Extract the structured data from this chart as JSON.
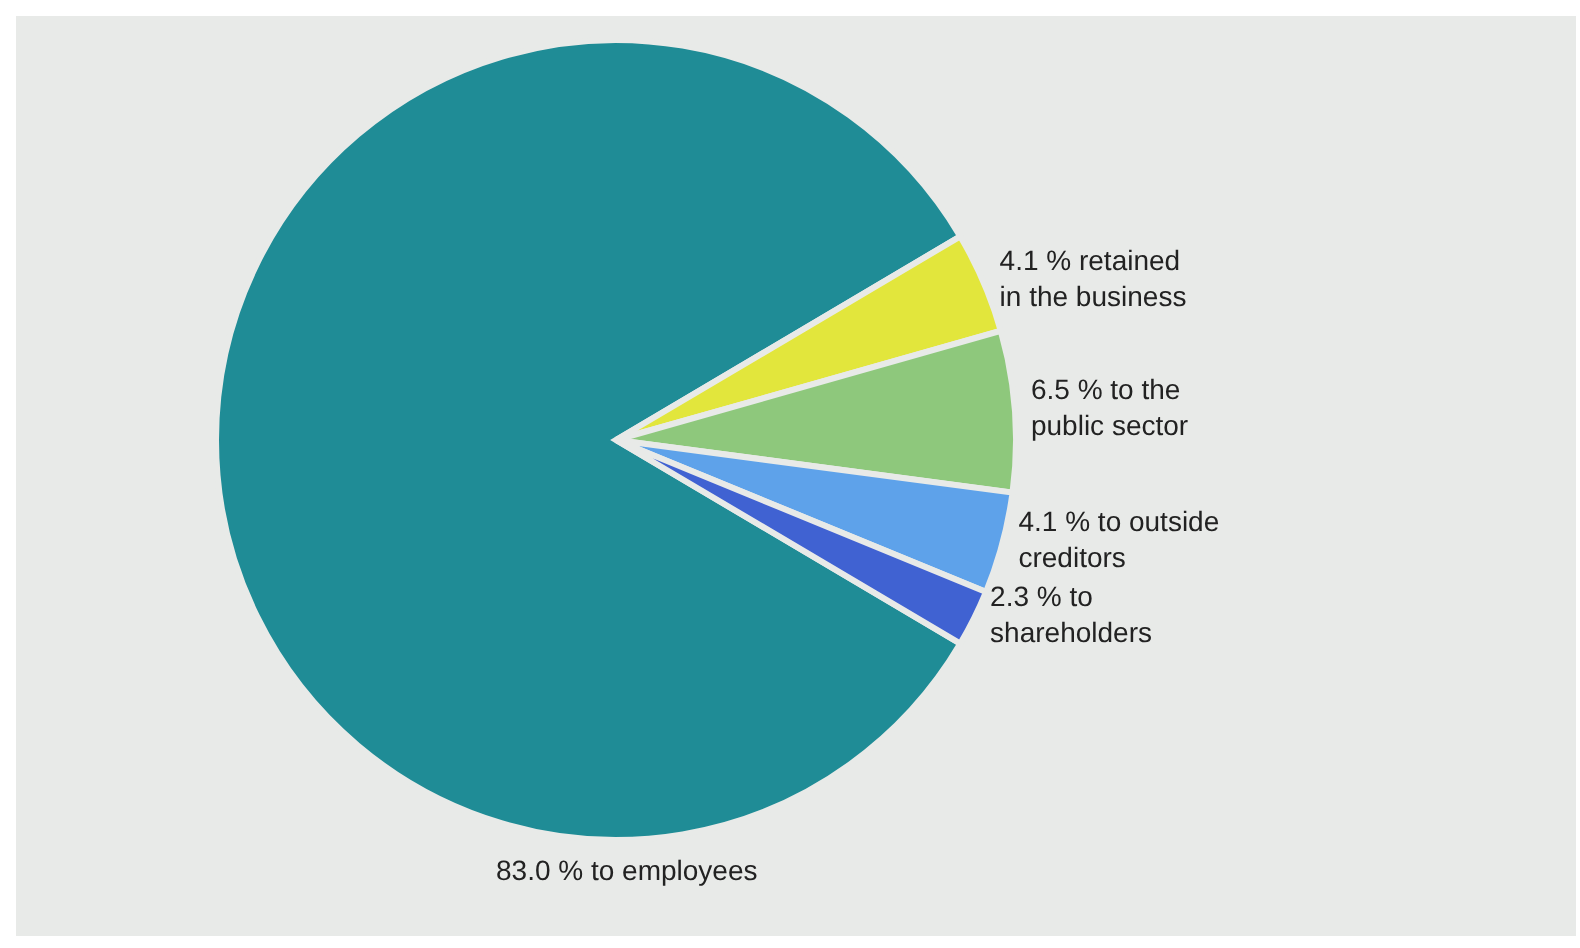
{
  "chart_data": {
    "type": "pie",
    "categories": [
      "to employees",
      "retained in the business",
      "to the public sector",
      "to outside creditors",
      "to shareholders"
    ],
    "values": [
      83.0,
      4.1,
      6.5,
      4.1,
      2.3
    ],
    "value_labels": [
      "83.0 %",
      "4.1 %",
      "6.5 %",
      "4.1 %",
      "2.3 %"
    ],
    "colors": [
      "#1f8c96",
      "#e2e63c",
      "#8ec87c",
      "#5ea2ea",
      "#4062d2"
    ],
    "legend": false
  }
}
